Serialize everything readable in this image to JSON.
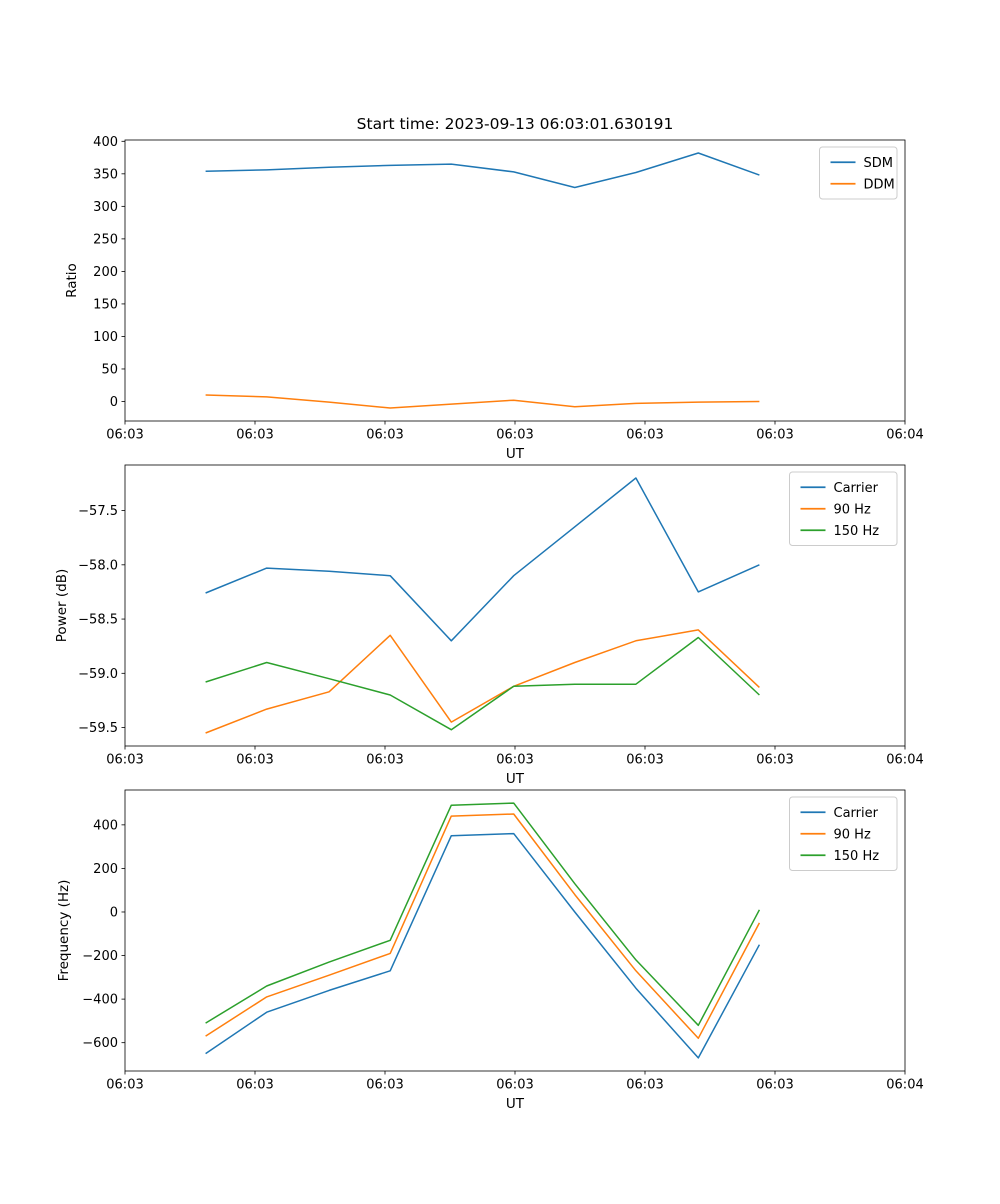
{
  "figure": {
    "background": "#ffffff"
  },
  "x_axis": {
    "label": "UT",
    "tick_labels": [
      "06:03",
      "06:03",
      "06:03",
      "06:03",
      "06:03",
      "06:03",
      "06:04"
    ],
    "tick_seconds": [
      0,
      10,
      20,
      30,
      40,
      50,
      60
    ],
    "range_seconds": [
      0,
      60
    ]
  },
  "x_seconds": [
    6.2,
    10.9,
    15.7,
    20.4,
    25.1,
    29.9,
    34.6,
    39.3,
    44.1,
    48.8
  ],
  "chart_data": [
    {
      "type": "line",
      "title": "Start time: 2023-09-13 06:03:01.630191",
      "xlabel": "UT",
      "ylabel": "Ratio",
      "ylim": [
        -30,
        402
      ],
      "yticks": [
        0,
        50,
        100,
        150,
        200,
        250,
        300,
        350,
        400
      ],
      "ytick_labels": [
        "0",
        "50",
        "100",
        "150",
        "200",
        "250",
        "300",
        "350",
        "400"
      ],
      "grid": false,
      "legend_position": "upper right",
      "series": [
        {
          "name": "SDM",
          "color": "#1f77b4",
          "values": [
            354,
            356,
            360,
            363,
            365,
            353,
            329,
            352,
            382,
            348
          ]
        },
        {
          "name": "DDM",
          "color": "#ff7f0e",
          "values": [
            10,
            7,
            -1,
            -10,
            -4,
            2,
            -8,
            -3,
            -1,
            0
          ]
        }
      ]
    },
    {
      "type": "line",
      "xlabel": "UT",
      "ylabel": "Power (dB)",
      "ylim": [
        -59.67,
        -57.08
      ],
      "yticks": [
        -59.5,
        -59.0,
        -58.5,
        -58.0,
        -57.5
      ],
      "ytick_labels": [
        "−59.5",
        "−59.0",
        "−58.5",
        "−58.0",
        "−57.5"
      ],
      "grid": false,
      "legend_position": "upper right",
      "series": [
        {
          "name": "Carrier",
          "color": "#1f77b4",
          "values": [
            -58.26,
            -58.03,
            -58.06,
            -58.1,
            -58.7,
            -58.1,
            -57.65,
            -57.2,
            -58.25,
            -58.0
          ]
        },
        {
          "name": "90 Hz",
          "color": "#ff7f0e",
          "values": [
            -59.55,
            -59.33,
            -59.17,
            -58.65,
            -59.45,
            -59.12,
            -58.9,
            -58.7,
            -58.6,
            -59.13
          ]
        },
        {
          "name": "150 Hz",
          "color": "#2ca02c",
          "values": [
            -59.08,
            -58.9,
            -59.05,
            -59.2,
            -59.52,
            -59.12,
            -59.1,
            -59.1,
            -58.67,
            -59.2
          ]
        }
      ]
    },
    {
      "type": "line",
      "xlabel": "UT",
      "ylabel": "Frequency (Hz)",
      "ylim": [
        -730,
        560
      ],
      "yticks": [
        -600,
        -400,
        -200,
        0,
        200,
        400
      ],
      "ytick_labels": [
        "−600",
        "−400",
        "−200",
        "0",
        "200",
        "400"
      ],
      "grid": false,
      "legend_position": "upper right",
      "series": [
        {
          "name": "Carrier",
          "color": "#1f77b4",
          "values": [
            -650,
            -460,
            -360,
            -270,
            350,
            360,
            0,
            -350,
            -670,
            -150
          ]
        },
        {
          "name": "90 Hz",
          "color": "#ff7f0e",
          "values": [
            -570,
            -390,
            -290,
            -190,
            440,
            450,
            80,
            -270,
            -580,
            -50
          ]
        },
        {
          "name": "150 Hz",
          "color": "#2ca02c",
          "values": [
            -510,
            -340,
            -230,
            -130,
            490,
            500,
            130,
            -220,
            -520,
            10
          ]
        }
      ]
    }
  ]
}
